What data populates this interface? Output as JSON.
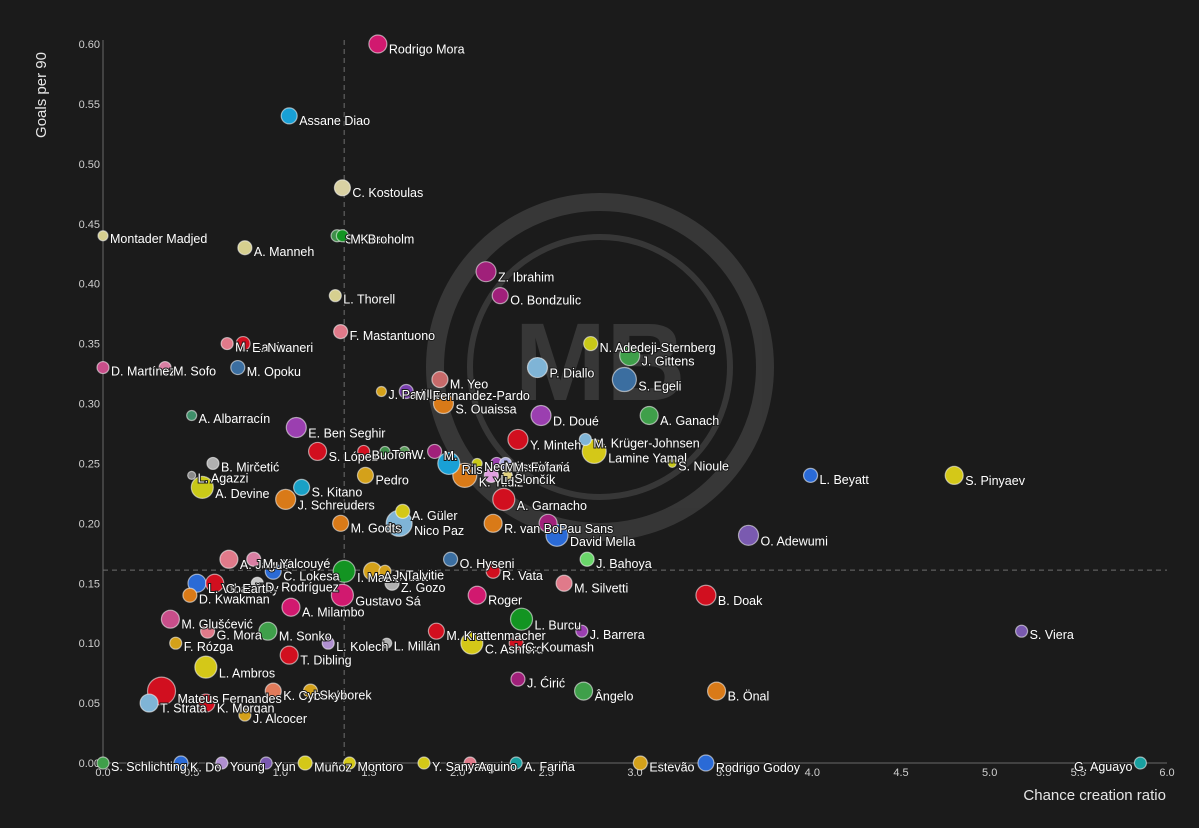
{
  "chart_data": {
    "type": "scatter",
    "xlabel": "Chance creation ratio",
    "ylabel": "Goals per 90",
    "xlim": [
      0,
      6
    ],
    "ylim": [
      0,
      0.6
    ],
    "x_ticks": [
      "0.0",
      "0.5",
      "1.0",
      "1.5",
      "2.0",
      "2.5",
      "3.0",
      "3.5",
      "4.0",
      "4.5",
      "5.0",
      "5.5",
      "6.0"
    ],
    "y_ticks": [
      "0.00",
      "0.05",
      "0.10",
      "0.15",
      "0.20",
      "0.25",
      "0.30",
      "0.35",
      "0.40",
      "0.45",
      "0.50",
      "0.55",
      "0.60"
    ],
    "reference_lines": {
      "x": 1.36,
      "y": 0.161
    },
    "background_color": "#1b1b1b",
    "watermark": "MB",
    "points": [
      {
        "name": "Rodrigo Mora",
        "x": 1.55,
        "y": 0.6,
        "color": "#d1196f",
        "size": 9
      },
      {
        "name": "Assane Diao",
        "x": 1.05,
        "y": 0.54,
        "color": "#19a0d6",
        "size": 8
      },
      {
        "name": "C. Kostoulas",
        "x": 1.35,
        "y": 0.48,
        "color": "#d9d1a3",
        "size": 8
      },
      {
        "name": "S. Kilen",
        "x": 1.32,
        "y": 0.44,
        "color": "#3f8f4a",
        "size": 6
      },
      {
        "name": "M. Broholm",
        "x": 1.35,
        "y": 0.44,
        "color": "#139422",
        "size": 6
      },
      {
        "name": "Montader Madjed",
        "x": 0.0,
        "y": 0.44,
        "color": "#d6cf8f",
        "size": 5
      },
      {
        "name": "A. Manneh",
        "x": 0.8,
        "y": 0.43,
        "color": "#d6cf8f",
        "size": 7
      },
      {
        "name": "Z. Ibrahim",
        "x": 2.16,
        "y": 0.41,
        "color": "#a0207a",
        "size": 10
      },
      {
        "name": "O. Bondzulic",
        "x": 2.24,
        "y": 0.39,
        "color": "#a0207a",
        "size": 8
      },
      {
        "name": "L. Thorell",
        "x": 1.31,
        "y": 0.39,
        "color": "#d6cf8f",
        "size": 6
      },
      {
        "name": "F. Mastantuono",
        "x": 1.34,
        "y": 0.36,
        "color": "#e07a8a",
        "size": 7
      },
      {
        "name": "M. Carrizo",
        "x": 0.7,
        "y": 0.35,
        "color": "#e07a8a",
        "size": 6
      },
      {
        "name": "E. Nwaneri",
        "x": 0.79,
        "y": 0.35,
        "color": "#d10f1f",
        "size": 7
      },
      {
        "name": "N. Adedeji-Sternberg",
        "x": 2.75,
        "y": 0.35,
        "color": "#c9c918",
        "size": 7
      },
      {
        "name": "J. Gittens",
        "x": 2.97,
        "y": 0.34,
        "color": "#3f9f4a",
        "size": 10
      },
      {
        "name": "D. Martínez",
        "x": 0.0,
        "y": 0.33,
        "color": "#c84e8a",
        "size": 6
      },
      {
        "name": "M. Sofo",
        "x": 0.35,
        "y": 0.33,
        "color": "#d97fa3",
        "size": 6
      },
      {
        "name": "M. Opoku",
        "x": 0.76,
        "y": 0.33,
        "color": "#3b6ea0",
        "size": 7
      },
      {
        "name": "P. Diallo",
        "x": 2.45,
        "y": 0.33,
        "color": "#7fb4d6",
        "size": 10
      },
      {
        "name": "J. Padilla",
        "x": 1.57,
        "y": 0.31,
        "color": "#d4a11a",
        "size": 5
      },
      {
        "name": "M. Yeo",
        "x": 1.9,
        "y": 0.32,
        "color": "#c86a6a",
        "size": 8
      },
      {
        "name": "S. Egeli",
        "x": 2.94,
        "y": 0.32,
        "color": "#3b6ea0",
        "size": 12
      },
      {
        "name": "M. Fernandez-Pardo",
        "x": 1.71,
        "y": 0.31,
        "color": "#7a3fb0",
        "size": 7
      },
      {
        "name": "S. Ouaissa",
        "x": 1.92,
        "y": 0.3,
        "color": "#d97a18",
        "size": 10
      },
      {
        "name": "A. Albarracín",
        "x": 0.5,
        "y": 0.29,
        "color": "#3f8f6a",
        "size": 5
      },
      {
        "name": "D. Doué",
        "x": 2.47,
        "y": 0.29,
        "color": "#9b3fb0",
        "size": 10
      },
      {
        "name": "A. Ganach",
        "x": 3.08,
        "y": 0.29,
        "color": "#3f9f4a",
        "size": 9
      },
      {
        "name": "E. Ben Seghir",
        "x": 1.09,
        "y": 0.28,
        "color": "#9b3fb0",
        "size": 10
      },
      {
        "name": "Y. Minteh",
        "x": 2.34,
        "y": 0.27,
        "color": "#d10f1f",
        "size": 10
      },
      {
        "name": "M. Krüger-Johnsen",
        "x": 2.72,
        "y": 0.27,
        "color": "#7fb4d6",
        "size": 6
      },
      {
        "name": "Lamine Yamal",
        "x": 2.77,
        "y": 0.26,
        "color": "#d4c818",
        "size": 12
      },
      {
        "name": "S. López",
        "x": 1.21,
        "y": 0.26,
        "color": "#d10f1f",
        "size": 9
      },
      {
        "name": "Buon",
        "x": 1.47,
        "y": 0.26,
        "color": "#d10f1f",
        "size": 6
      },
      {
        "name": "Tom",
        "x": 1.59,
        "y": 0.26,
        "color": "#3f8f4a",
        "size": 5
      },
      {
        "name": "W.",
        "x": 1.7,
        "y": 0.26,
        "color": "#5a9a5a",
        "size": 5
      },
      {
        "name": "M.",
        "x": 1.87,
        "y": 0.26,
        "color": "#a0207a",
        "size": 7
      },
      {
        "name": "Rils",
        "x": 1.95,
        "y": 0.25,
        "color": "#19a0d6",
        "size": 11
      },
      {
        "name": "Nedeljković",
        "x": 2.11,
        "y": 0.25,
        "color": "#c9c918",
        "size": 5
      },
      {
        "name": "Massimović",
        "x": 2.22,
        "y": 0.25,
        "color": "#9b3fb0",
        "size": 6
      },
      {
        "name": "B. Mirčetić",
        "x": 0.62,
        "y": 0.25,
        "color": "#b0b0b0",
        "size": 6
      },
      {
        "name": "L. Agazzi",
        "x": 0.5,
        "y": 0.24,
        "color": "#8a8a8a",
        "size": 4
      },
      {
        "name": "M. Fofana",
        "x": 2.27,
        "y": 0.25,
        "color": "#b0b0e0",
        "size": 6
      },
      {
        "name": "S. Nioule",
        "x": 3.21,
        "y": 0.25,
        "color": "#c9c918",
        "size": 4
      },
      {
        "name": "K. Yildiz",
        "x": 2.04,
        "y": 0.24,
        "color": "#d97a18",
        "size": 12
      },
      {
        "name": "L. Slončík",
        "x": 2.19,
        "y": 0.24,
        "color": "#e0a0e0",
        "size": 7
      },
      {
        "name": "S.",
        "x": 2.28,
        "y": 0.24,
        "color": "#e0d080",
        "size": 5
      },
      {
        "name": "L. Beyatt",
        "x": 3.99,
        "y": 0.24,
        "color": "#2a6ad6",
        "size": 7
      },
      {
        "name": "S. Pinyaev",
        "x": 4.8,
        "y": 0.24,
        "color": "#d4c818",
        "size": 9
      },
      {
        "name": "Pedro",
        "x": 1.48,
        "y": 0.24,
        "color": "#d4a11a",
        "size": 8
      },
      {
        "name": "A. Devine",
        "x": 0.56,
        "y": 0.23,
        "color": "#c9c918",
        "size": 11
      },
      {
        "name": "S. Kitano",
        "x": 1.12,
        "y": 0.23,
        "color": "#19a0c6",
        "size": 8
      },
      {
        "name": "J. Schreuders",
        "x": 1.03,
        "y": 0.22,
        "color": "#d97a18",
        "size": 10
      },
      {
        "name": "A. Garnacho",
        "x": 2.26,
        "y": 0.22,
        "color": "#d10f1f",
        "size": 11
      },
      {
        "name": "A. Güler",
        "x": 1.69,
        "y": 0.21,
        "color": "#d4c818",
        "size": 7
      },
      {
        "name": "M. Godts",
        "x": 1.34,
        "y": 0.2,
        "color": "#d97a18",
        "size": 8
      },
      {
        "name": "R. van Bo",
        "x": 2.2,
        "y": 0.2,
        "color": "#d97a18",
        "size": 9
      },
      {
        "name": "Pau Sans",
        "x": 2.51,
        "y": 0.2,
        "color": "#a0207a",
        "size": 9
      },
      {
        "name": "David Mella",
        "x": 2.56,
        "y": 0.19,
        "color": "#2a6ad6",
        "size": 11
      },
      {
        "name": "O. Adewumi",
        "x": 3.64,
        "y": 0.19,
        "color": "#7a5ab0",
        "size": 10
      },
      {
        "name": "Nico Paz",
        "x": 1.67,
        "y": 0.2,
        "color": "#7fb4d6",
        "size": 13
      },
      {
        "name": "I. Maza",
        "x": 1.36,
        "y": 0.16,
        "color": "#139422",
        "size": 11
      },
      {
        "name": "A. Nusa",
        "x": 1.52,
        "y": 0.16,
        "color": "#d4a11a",
        "size": 9
      },
      {
        "name": "A. Jagušić",
        "x": 0.71,
        "y": 0.17,
        "color": "#e07a8a",
        "size": 9
      },
      {
        "name": "M. Yalcouyé",
        "x": 0.85,
        "y": 0.17,
        "color": "#d97fa3",
        "size": 7
      },
      {
        "name": "O. Hyseni",
        "x": 1.96,
        "y": 0.17,
        "color": "#3b6ea0",
        "size": 7
      },
      {
        "name": "J. Bahoya",
        "x": 2.73,
        "y": 0.17,
        "color": "#6ad66a",
        "size": 7
      },
      {
        "name": "C. Lokesa",
        "x": 0.96,
        "y": 0.16,
        "color": "#2a6ad6",
        "size": 8
      },
      {
        "name": "J. Talvitie",
        "x": 1.59,
        "y": 0.16,
        "color": "#d4a11a",
        "size": 6
      },
      {
        "name": "R. Vata",
        "x": 2.2,
        "y": 0.16,
        "color": "#d10f1f",
        "size": 7
      },
      {
        "name": "L. Vrbančić",
        "x": 0.53,
        "y": 0.15,
        "color": "#2a6ad6",
        "size": 9
      },
      {
        "name": "G. Earthy",
        "x": 0.63,
        "y": 0.15,
        "color": "#d10f1f",
        "size": 9
      },
      {
        "name": "D. Rodríguez",
        "x": 0.87,
        "y": 0.15,
        "color": "#c8c8c8",
        "size": 6
      },
      {
        "name": "Z. Gozo",
        "x": 1.63,
        "y": 0.15,
        "color": "#b0b0b0",
        "size": 7
      },
      {
        "name": "M. Silvetti",
        "x": 2.6,
        "y": 0.15,
        "color": "#e07a8a",
        "size": 8
      },
      {
        "name": "D. Kwakman",
        "x": 0.49,
        "y": 0.14,
        "color": "#d97a18",
        "size": 7
      },
      {
        "name": "Gustavo Sá",
        "x": 1.35,
        "y": 0.14,
        "color": "#d1196f",
        "size": 11
      },
      {
        "name": "Roger",
        "x": 2.11,
        "y": 0.14,
        "color": "#d1196f",
        "size": 9
      },
      {
        "name": "B. Doak",
        "x": 3.4,
        "y": 0.14,
        "color": "#d10f1f",
        "size": 10
      },
      {
        "name": "A. Milambo",
        "x": 1.06,
        "y": 0.13,
        "color": "#d1196f",
        "size": 9
      },
      {
        "name": "M. Glušćević",
        "x": 0.38,
        "y": 0.12,
        "color": "#c84e8a",
        "size": 9
      },
      {
        "name": "L. Burcu",
        "x": 2.36,
        "y": 0.12,
        "color": "#139422",
        "size": 11
      },
      {
        "name": "M. Sonko",
        "x": 0.93,
        "y": 0.11,
        "color": "#3f9f4a",
        "size": 9
      },
      {
        "name": "M. Krattenmacher",
        "x": 1.88,
        "y": 0.11,
        "color": "#d10f1f",
        "size": 8
      },
      {
        "name": "J. Barrera",
        "x": 2.7,
        "y": 0.11,
        "color": "#9b3fb0",
        "size": 6
      },
      {
        "name": "S. Viera",
        "x": 5.18,
        "y": 0.11,
        "color": "#7a5ab0",
        "size": 6
      },
      {
        "name": "G. Mora",
        "x": 0.59,
        "y": 0.11,
        "color": "#e07a8a",
        "size": 7
      },
      {
        "name": "C. Ashford",
        "x": 2.08,
        "y": 0.1,
        "color": "#d4c818",
        "size": 11
      },
      {
        "name": "C. Koumash",
        "x": 2.33,
        "y": 0.1,
        "color": "#d10f1f",
        "size": 7
      },
      {
        "name": "F. Rózga",
        "x": 0.41,
        "y": 0.1,
        "color": "#d4a11a",
        "size": 6
      },
      {
        "name": "L. Kolech",
        "x": 1.27,
        "y": 0.1,
        "color": "#b090d0",
        "size": 6
      },
      {
        "name": "L. Millán",
        "x": 1.6,
        "y": 0.1,
        "color": "#b0b0b0",
        "size": 5
      },
      {
        "name": "T. Dibling",
        "x": 1.05,
        "y": 0.09,
        "color": "#d10f1f",
        "size": 9
      },
      {
        "name": "L. Ambros",
        "x": 0.58,
        "y": 0.08,
        "color": "#d4c818",
        "size": 11
      },
      {
        "name": "J. Ćirić",
        "x": 2.34,
        "y": 0.07,
        "color": "#a0207a",
        "size": 7
      },
      {
        "name": "Mateus Fernandes",
        "x": 0.33,
        "y": 0.06,
        "color": "#d10f1f",
        "size": 14
      },
      {
        "name": "K. Cybulski",
        "x": 0.96,
        "y": 0.06,
        "color": "#e07a5a",
        "size": 8
      },
      {
        "name": "Skyborek",
        "x": 1.17,
        "y": 0.06,
        "color": "#d4a11a",
        "size": 7
      },
      {
        "name": "Ângelo",
        "x": 2.71,
        "y": 0.06,
        "color": "#3f9f4a",
        "size": 9
      },
      {
        "name": "B. Önal",
        "x": 3.46,
        "y": 0.06,
        "color": "#d97a18",
        "size": 9
      },
      {
        "name": "T. Strata",
        "x": 0.26,
        "y": 0.05,
        "color": "#7fb4d6",
        "size": 9
      },
      {
        "name": "K. Morgan",
        "x": 0.58,
        "y": 0.05,
        "color": "#d10f1f",
        "size": 9
      },
      {
        "name": "J. Alcocer",
        "x": 0.8,
        "y": 0.04,
        "color": "#d4a11a",
        "size": 6
      },
      {
        "name": "S. Schlichting",
        "x": 0.0,
        "y": 0.0,
        "color": "#3f9f4a",
        "size": 6
      },
      {
        "name": "K. Do",
        "x": 0.44,
        "y": 0.0,
        "color": "#2a6ad6",
        "size": 7
      },
      {
        "name": "Young",
        "x": 0.67,
        "y": 0.0,
        "color": "#b090d0",
        "size": 6
      },
      {
        "name": "Yun",
        "x": 0.92,
        "y": 0.0,
        "color": "#7a5ab0",
        "size": 6
      },
      {
        "name": "Muñoz",
        "x": 1.14,
        "y": 0.0,
        "color": "#d4c818",
        "size": 7
      },
      {
        "name": "Montoro",
        "x": 1.39,
        "y": 0.0,
        "color": "#d4c818",
        "size": 6
      },
      {
        "name": "Y. Sanyang",
        "x": 1.81,
        "y": 0.0,
        "color": "#d4c818",
        "size": 6
      },
      {
        "name": "Aquino",
        "x": 2.07,
        "y": 0.0,
        "color": "#e07a8a",
        "size": 6
      },
      {
        "name": "A. Fariña",
        "x": 2.33,
        "y": 0.0,
        "color": "#19a0a0",
        "size": 6
      },
      {
        "name": "Estevão",
        "x": 3.03,
        "y": 0.0,
        "color": "#d4a11a",
        "size": 7
      },
      {
        "name": "Rodrigo Godoy",
        "x": 3.4,
        "y": 0.0,
        "color": "#2a6ad6",
        "size": 8
      },
      {
        "name": "G. Aguayo",
        "x": 5.85,
        "y": 0.0,
        "color": "#19a0a0",
        "size": 6
      }
    ]
  }
}
